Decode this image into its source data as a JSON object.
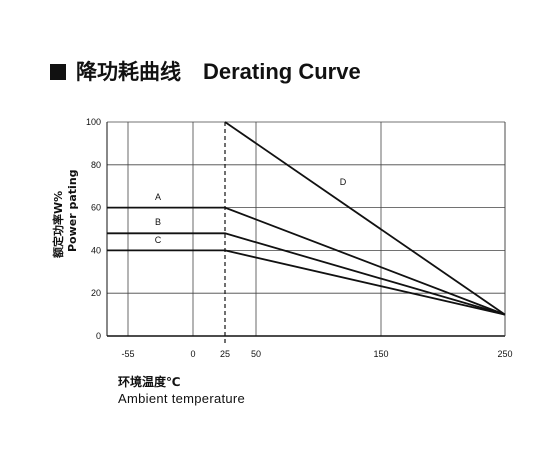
{
  "heading": {
    "cn": "降功耗曲线",
    "en": "Derating Curve"
  },
  "chart_data": {
    "type": "line",
    "title": "降功耗曲线 Derating Curve",
    "ylabel_cn": "额定功率W%",
    "ylabel_en": "Power pating",
    "xlabel_cn": "环境温度℃",
    "xlabel_en": "Ambient  temperature",
    "x_ticks": [
      "-55",
      "0",
      "25",
      "50",
      "150",
      "250"
    ],
    "y_ticks": [
      "0",
      "20",
      "40",
      "60",
      "80",
      "100"
    ],
    "ylim": [
      0,
      100
    ],
    "grid": true,
    "reference_line": {
      "x": 25,
      "style": "dashed"
    },
    "series": [
      {
        "name": "A",
        "x": [
          -70,
          25,
          250
        ],
        "y": [
          60,
          60,
          10
        ]
      },
      {
        "name": "B",
        "x": [
          -70,
          25,
          250
        ],
        "y": [
          48,
          48,
          10
        ]
      },
      {
        "name": "C",
        "x": [
          -70,
          25,
          250
        ],
        "y": [
          40,
          40,
          10
        ]
      },
      {
        "name": "D",
        "x": [
          25,
          250
        ],
        "y": [
          100,
          10
        ]
      }
    ]
  }
}
